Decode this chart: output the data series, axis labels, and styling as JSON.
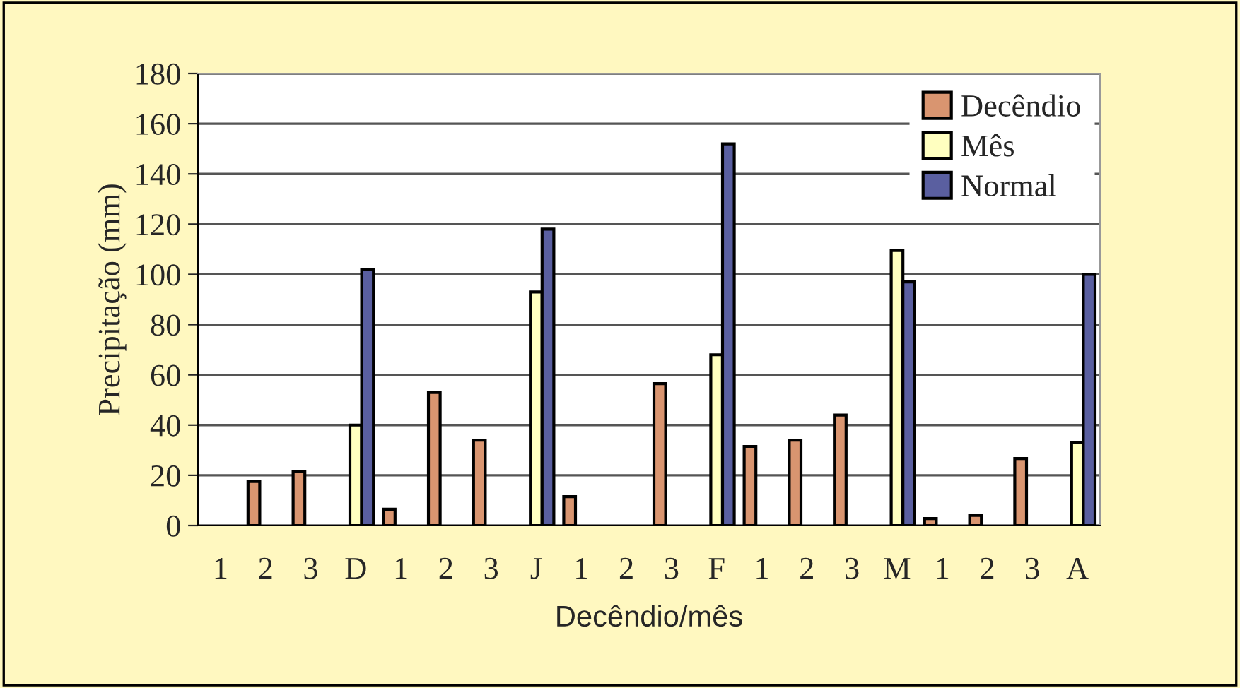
{
  "chart_data": {
    "type": "bar",
    "xlabel": "Decêndio/mês",
    "ylabel": "Precipitação (mm)",
    "categories": [
      "1",
      "2",
      "3",
      "D",
      "1",
      "2",
      "3",
      "J",
      "1",
      "2",
      "3",
      "F",
      "1",
      "2",
      "3",
      "M",
      "1",
      "2",
      "3",
      "A"
    ],
    "series": [
      {
        "name": "Decêndio",
        "color": "#d99570",
        "values": [
          null,
          17.5,
          21.5,
          null,
          6.5,
          53,
          34,
          null,
          11.5,
          null,
          56.5,
          null,
          31.5,
          34,
          44,
          null,
          2.8,
          4,
          26.7,
          null
        ]
      },
      {
        "name": "Mês",
        "color": "#ffffc0",
        "values": [
          null,
          null,
          null,
          40,
          null,
          null,
          null,
          93,
          null,
          null,
          null,
          68,
          null,
          null,
          null,
          109.5,
          null,
          null,
          null,
          33
        ]
      },
      {
        "name": "Normal",
        "color": "#5a5fa0",
        "values": [
          null,
          null,
          null,
          102,
          null,
          null,
          null,
          118,
          null,
          null,
          null,
          152,
          null,
          null,
          null,
          97,
          null,
          null,
          null,
          100
        ]
      }
    ],
    "ylim": [
      0,
      180
    ],
    "yticks": [
      0,
      20,
      40,
      60,
      80,
      100,
      120,
      140,
      160,
      180
    ],
    "grid": "y",
    "legend": "top right"
  }
}
